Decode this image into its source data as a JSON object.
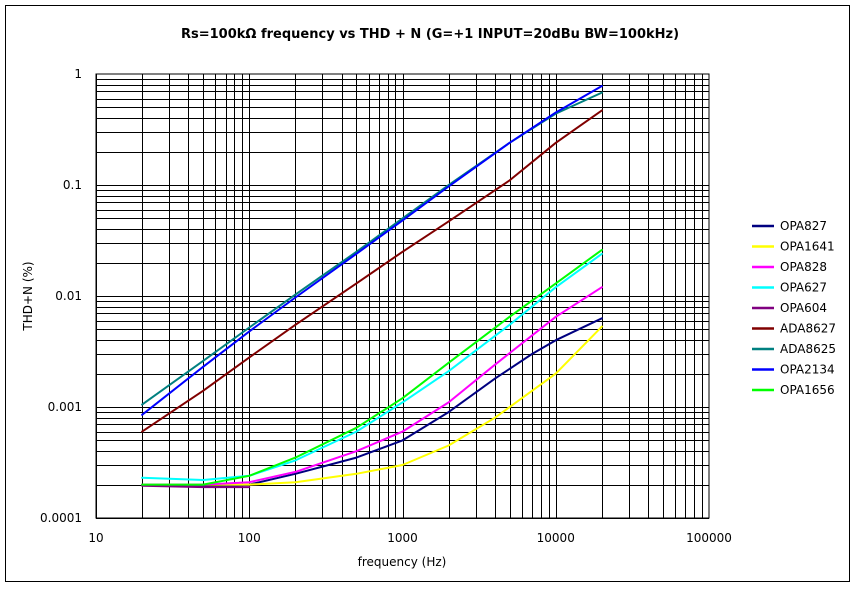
{
  "chart_data": {
    "type": "line",
    "title": "Rs=100kΩ frequency vs THD + N (G=+1 INPUT=20dBu BW=100kHz)",
    "xlabel": "frequency (Hz)",
    "ylabel": "THD+N (%)",
    "xscale": "log",
    "yscale": "log",
    "xlim": [
      10,
      100000
    ],
    "ylim": [
      0.0001,
      1
    ],
    "xticks": [
      "10",
      "100",
      "1000",
      "10000",
      "100000"
    ],
    "yticks": [
      "0.0001",
      "0.001",
      "0.01",
      "0.1",
      "1"
    ],
    "grid": true,
    "legend": "right",
    "series": [
      {
        "name": "OPA827",
        "color": "#000080",
        "x": [
          20,
          40,
          60,
          100,
          200,
          500,
          1000,
          2000,
          4000,
          7000,
          10000,
          20000
        ],
        "y": [
          0.0002,
          0.000195,
          0.00019,
          0.0002,
          0.00025,
          0.00035,
          0.0005,
          0.0009,
          0.0018,
          0.003,
          0.004,
          0.0063
        ]
      },
      {
        "name": "OPA1641",
        "color": "#FFFF00",
        "x": [
          20,
          50,
          100,
          200,
          500,
          1000,
          2000,
          4000,
          10000,
          20000
        ],
        "y": [
          0.0002,
          0.0002,
          0.0002,
          0.00021,
          0.00025,
          0.0003,
          0.00045,
          0.0008,
          0.002,
          0.0053
        ]
      },
      {
        "name": "OPA828",
        "color": "#FF00FF",
        "x": [
          20,
          50,
          100,
          200,
          500,
          1000,
          2000,
          4000,
          10000,
          20000
        ],
        "y": [
          0.0002,
          0.0002,
          0.00021,
          0.00026,
          0.0004,
          0.0006,
          0.0011,
          0.0024,
          0.0065,
          0.012
        ]
      },
      {
        "name": "OPA627",
        "color": "#00FFFF",
        "x": [
          20,
          50,
          100,
          200,
          500,
          1000,
          2000,
          5000,
          10000,
          20000
        ],
        "y": [
          0.00023,
          0.00022,
          0.00024,
          0.00033,
          0.0006,
          0.0011,
          0.0021,
          0.0055,
          0.012,
          0.024
        ]
      },
      {
        "name": "OPA604",
        "color": "#800080",
        "x": [
          20,
          50,
          100
        ],
        "y": [
          0.000195,
          0.00019,
          0.00019
        ]
      },
      {
        "name": "ADA8627",
        "color": "#800000",
        "x": [
          20,
          50,
          100,
          200,
          500,
          1000,
          2000,
          5000,
          10000,
          20000
        ],
        "y": [
          0.0006,
          0.0014,
          0.0028,
          0.0055,
          0.013,
          0.025,
          0.047,
          0.11,
          0.24,
          0.47
        ]
      },
      {
        "name": "ADA8625",
        "color": "#008080",
        "x": [
          20,
          50,
          100,
          200,
          500,
          1000,
          2000,
          5000,
          10000,
          20000
        ],
        "y": [
          0.00105,
          0.0026,
          0.0052,
          0.0103,
          0.025,
          0.05,
          0.1,
          0.24,
          0.44,
          0.68
        ]
      },
      {
        "name": "OPA2134",
        "color": "#0000FF",
        "x": [
          20,
          50,
          100,
          200,
          500,
          1000,
          2000,
          5000,
          10000,
          20000
        ],
        "y": [
          0.00085,
          0.0023,
          0.0048,
          0.0097,
          0.024,
          0.048,
          0.097,
          0.24,
          0.45,
          0.78
        ]
      },
      {
        "name": "OPA1656",
        "color": "#00FF00",
        "x": [
          20,
          50,
          100,
          200,
          500,
          1000,
          2000,
          5000,
          10000,
          20000
        ],
        "y": [
          0.0002,
          0.0002,
          0.00024,
          0.00035,
          0.00065,
          0.0012,
          0.0025,
          0.0065,
          0.013,
          0.026
        ]
      }
    ]
  }
}
